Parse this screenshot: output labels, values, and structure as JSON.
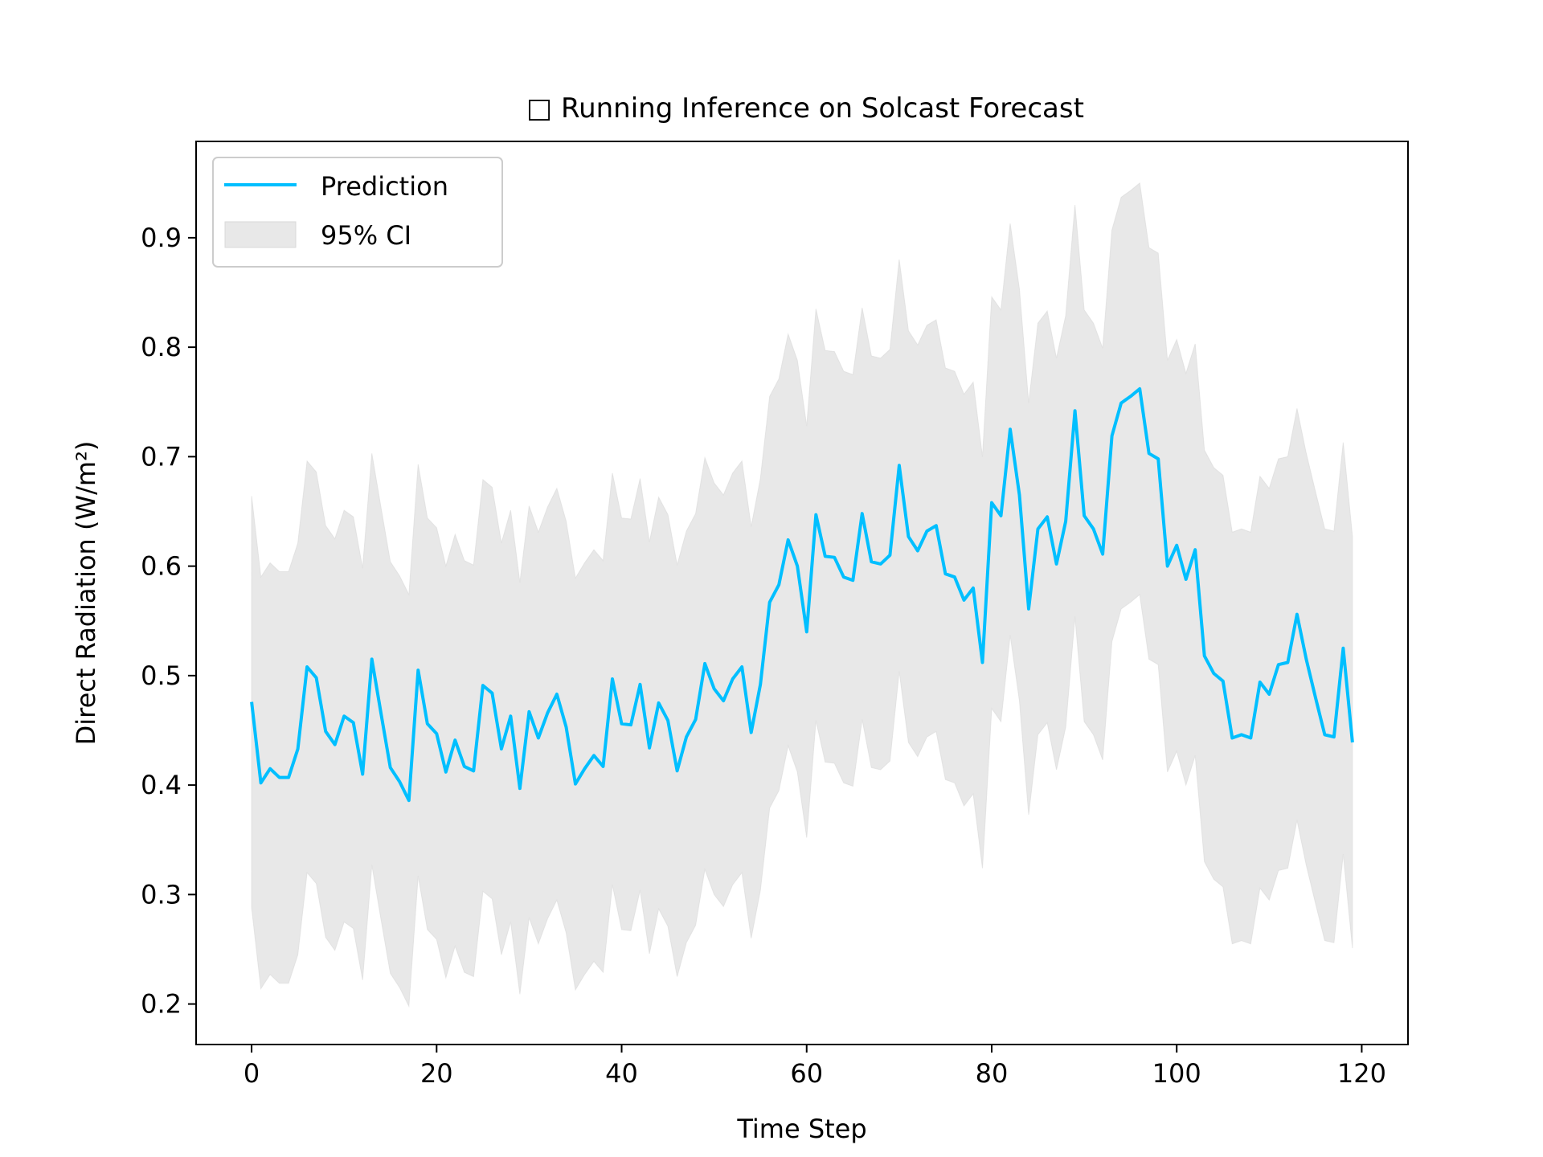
{
  "chart_data": {
    "type": "line",
    "title": "□ Running Inference on Solcast Forecast",
    "xlabel": "Time Step",
    "ylabel": "Direct Radiation (W/m²)",
    "xlim": [
      -6,
      125
    ],
    "ylim": [
      0.163,
      0.988
    ],
    "xticks": [
      0,
      20,
      40,
      60,
      80,
      100,
      120
    ],
    "yticks": [
      0.2,
      0.3,
      0.4,
      0.5,
      0.6,
      0.7,
      0.8,
      0.9
    ],
    "xtick_labels": [
      "0",
      "20",
      "40",
      "60",
      "80",
      "100",
      "120"
    ],
    "ytick_labels": [
      "0.2",
      "0.3",
      "0.4",
      "0.5",
      "0.6",
      "0.7",
      "0.8",
      "0.9"
    ],
    "grid": false,
    "legend_position": "upper-left",
    "colors": {
      "prediction": "#00bfff",
      "ci": "#d9d9d9"
    },
    "series": [
      {
        "name": "Prediction",
        "kind": "line",
        "x": [
          0,
          1,
          2,
          3,
          4,
          5,
          6,
          7,
          8,
          9,
          10,
          11,
          12,
          13,
          14,
          15,
          16,
          17,
          18,
          19,
          20,
          21,
          22,
          23,
          24,
          25,
          26,
          27,
          28,
          29,
          30,
          31,
          32,
          33,
          34,
          35,
          36,
          37,
          38,
          39,
          40,
          41,
          42,
          43,
          44,
          45,
          46,
          47,
          48,
          49,
          50,
          51,
          52,
          53,
          54,
          55,
          56,
          57,
          58,
          59,
          60,
          61,
          62,
          63,
          64,
          65,
          66,
          67,
          68,
          69,
          70,
          71,
          72,
          73,
          74,
          75,
          76,
          77,
          78,
          79,
          80,
          81,
          82,
          83,
          84,
          85,
          86,
          87,
          88,
          89,
          90,
          91,
          92,
          93,
          94,
          95,
          96,
          97,
          98,
          99,
          100,
          101,
          102,
          103,
          104,
          105,
          106,
          107,
          108,
          109,
          110,
          111,
          112,
          113,
          114,
          115,
          116,
          117,
          118,
          119
        ],
        "y": [
          0.476,
          0.402,
          0.415,
          0.407,
          0.407,
          0.433,
          0.508,
          0.498,
          0.449,
          0.437,
          0.463,
          0.457,
          0.41,
          0.515,
          0.465,
          0.416,
          0.403,
          0.386,
          0.505,
          0.456,
          0.447,
          0.412,
          0.441,
          0.417,
          0.413,
          0.491,
          0.484,
          0.433,
          0.463,
          0.397,
          0.467,
          0.443,
          0.466,
          0.483,
          0.453,
          0.401,
          0.415,
          0.427,
          0.417,
          0.497,
          0.456,
          0.455,
          0.492,
          0.434,
          0.475,
          0.459,
          0.413,
          0.444,
          0.46,
          0.511,
          0.488,
          0.477,
          0.497,
          0.508,
          0.448,
          0.492,
          0.567,
          0.583,
          0.624,
          0.6,
          0.54,
          0.647,
          0.609,
          0.608,
          0.59,
          0.587,
          0.648,
          0.604,
          0.602,
          0.61,
          0.692,
          0.627,
          0.614,
          0.632,
          0.637,
          0.593,
          0.59,
          0.569,
          0.58,
          0.512,
          0.658,
          0.646,
          0.725,
          0.665,
          0.561,
          0.634,
          0.645,
          0.602,
          0.641,
          0.742,
          0.646,
          0.634,
          0.611,
          0.719,
          0.749,
          0.755,
          0.762,
          0.703,
          0.698,
          0.6,
          0.619,
          0.588,
          0.615,
          0.518,
          0.502,
          0.495,
          0.443,
          0.446,
          0.443,
          0.494,
          0.483,
          0.51,
          0.512,
          0.556,
          0.515,
          0.48,
          0.446,
          0.444,
          0.525,
          0.439
        ]
      },
      {
        "name": "95% CI",
        "kind": "band",
        "x": [
          0,
          1,
          2,
          3,
          4,
          5,
          6,
          7,
          8,
          9,
          10,
          11,
          12,
          13,
          14,
          15,
          16,
          17,
          18,
          19,
          20,
          21,
          22,
          23,
          24,
          25,
          26,
          27,
          28,
          29,
          30,
          31,
          32,
          33,
          34,
          35,
          36,
          37,
          38,
          39,
          40,
          41,
          42,
          43,
          44,
          45,
          46,
          47,
          48,
          49,
          50,
          51,
          52,
          53,
          54,
          55,
          56,
          57,
          58,
          59,
          60,
          61,
          62,
          63,
          64,
          65,
          66,
          67,
          68,
          69,
          70,
          71,
          72,
          73,
          74,
          75,
          76,
          77,
          78,
          79,
          80,
          81,
          82,
          83,
          84,
          85,
          86,
          87,
          88,
          89,
          90,
          91,
          92,
          93,
          94,
          95,
          96,
          97,
          98,
          99,
          100,
          101,
          102,
          103,
          104,
          105,
          106,
          107,
          108,
          109,
          110,
          111,
          112,
          113,
          114,
          115,
          116,
          117,
          118,
          119
        ],
        "lower": [
          0.288,
          0.214,
          0.227,
          0.219,
          0.219,
          0.245,
          0.32,
          0.31,
          0.261,
          0.249,
          0.275,
          0.269,
          0.222,
          0.327,
          0.277,
          0.228,
          0.215,
          0.198,
          0.317,
          0.268,
          0.259,
          0.224,
          0.253,
          0.229,
          0.225,
          0.303,
          0.296,
          0.245,
          0.275,
          0.209,
          0.279,
          0.255,
          0.278,
          0.295,
          0.265,
          0.213,
          0.227,
          0.239,
          0.229,
          0.309,
          0.268,
          0.267,
          0.304,
          0.246,
          0.287,
          0.271,
          0.225,
          0.256,
          0.272,
          0.323,
          0.3,
          0.289,
          0.309,
          0.32,
          0.26,
          0.304,
          0.379,
          0.395,
          0.436,
          0.412,
          0.352,
          0.459,
          0.421,
          0.42,
          0.402,
          0.399,
          0.46,
          0.416,
          0.414,
          0.422,
          0.504,
          0.439,
          0.426,
          0.444,
          0.449,
          0.405,
          0.402,
          0.381,
          0.392,
          0.324,
          0.47,
          0.458,
          0.537,
          0.477,
          0.373,
          0.446,
          0.457,
          0.414,
          0.453,
          0.554,
          0.458,
          0.446,
          0.423,
          0.531,
          0.561,
          0.567,
          0.574,
          0.515,
          0.51,
          0.412,
          0.431,
          0.4,
          0.427,
          0.33,
          0.314,
          0.307,
          0.255,
          0.258,
          0.255,
          0.306,
          0.295,
          0.322,
          0.324,
          0.368,
          0.327,
          0.292,
          0.258,
          0.256,
          0.337,
          0.251
        ],
        "upper": [
          0.664,
          0.59,
          0.603,
          0.595,
          0.595,
          0.621,
          0.696,
          0.686,
          0.637,
          0.625,
          0.651,
          0.645,
          0.598,
          0.703,
          0.653,
          0.604,
          0.591,
          0.574,
          0.693,
          0.644,
          0.635,
          0.6,
          0.629,
          0.605,
          0.601,
          0.679,
          0.672,
          0.621,
          0.651,
          0.585,
          0.655,
          0.631,
          0.654,
          0.671,
          0.641,
          0.589,
          0.603,
          0.615,
          0.605,
          0.685,
          0.644,
          0.643,
          0.68,
          0.622,
          0.663,
          0.647,
          0.601,
          0.632,
          0.648,
          0.699,
          0.676,
          0.665,
          0.685,
          0.696,
          0.636,
          0.68,
          0.755,
          0.771,
          0.812,
          0.788,
          0.728,
          0.835,
          0.797,
          0.796,
          0.778,
          0.775,
          0.836,
          0.792,
          0.79,
          0.798,
          0.88,
          0.815,
          0.802,
          0.82,
          0.825,
          0.781,
          0.778,
          0.757,
          0.768,
          0.7,
          0.846,
          0.834,
          0.913,
          0.853,
          0.749,
          0.822,
          0.833,
          0.79,
          0.829,
          0.93,
          0.834,
          0.822,
          0.799,
          0.907,
          0.937,
          0.943,
          0.95,
          0.891,
          0.886,
          0.788,
          0.807,
          0.776,
          0.803,
          0.706,
          0.69,
          0.683,
          0.631,
          0.634,
          0.631,
          0.682,
          0.671,
          0.698,
          0.7,
          0.744,
          0.703,
          0.668,
          0.634,
          0.632,
          0.713,
          0.627
        ]
      }
    ],
    "legend": [
      {
        "label": "Prediction",
        "type": "line"
      },
      {
        "label": "95% CI",
        "type": "band"
      }
    ]
  }
}
